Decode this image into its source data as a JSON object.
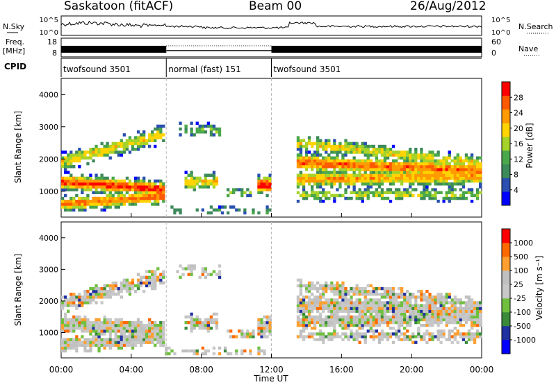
{
  "header": {
    "station": "Saskatoon (fitACF)",
    "beam": "Beam 00",
    "date": "26/Aug/2012"
  },
  "nsky_panel": {
    "left_label": "N.Sky",
    "right_label": "N.Search",
    "y_ticks": [
      "10^5",
      "10^0"
    ],
    "right_ticks": [
      "10^5",
      "10^0"
    ]
  },
  "freq_panel": {
    "left_label_1": "Freq.",
    "left_label_2": "[MHz]",
    "right_label": "Nave",
    "y_ticks": [
      "18",
      "8"
    ],
    "right_ticks": [
      "60",
      "0"
    ]
  },
  "cpid": {
    "label": "CPID",
    "segments": [
      {
        "name": "twofsound 3501",
        "start_h": 0,
        "end_h": 6
      },
      {
        "name": "normal (fast) 151",
        "start_h": 6,
        "end_h": 12
      },
      {
        "name": "twofsound 3501",
        "start_h": 12,
        "end_h": 24
      }
    ]
  },
  "chart_data": [
    {
      "type": "heatmap",
      "title": "Power",
      "ylabel": "Slant Range [km]",
      "y_ticks": [
        "4000",
        "3000",
        "2000",
        "1000"
      ],
      "ylim": [
        200,
        4500
      ],
      "colorbar": {
        "label": "Power [dB]",
        "ticks": [
          "28",
          "24",
          "20",
          "16",
          "12",
          "8",
          "4"
        ],
        "range": [
          0,
          32
        ]
      }
    },
    {
      "type": "heatmap",
      "title": "Velocity",
      "ylabel": "Slant Range [km]",
      "y_ticks": [
        "4000",
        "3000",
        "2000",
        "1000"
      ],
      "ylim": [
        200,
        4500
      ],
      "colorbar": {
        "label": "Velocity [m s⁻¹]",
        "ticks": [
          "1000",
          "500",
          "100",
          "25",
          "-25",
          "-100",
          "-500",
          "-1000"
        ]
      }
    }
  ],
  "x_axis": {
    "label": "Time UT",
    "ticks": [
      "00:00",
      "04:00",
      "08:00",
      "12:00",
      "16:00",
      "20:00",
      "00:00"
    ],
    "xlim_hours": [
      0,
      24
    ]
  },
  "colors": {
    "power_scale": [
      "#0000ff",
      "#2a4fb0",
      "#3d8a5a",
      "#4aa84a",
      "#a6d32a",
      "#ffd400",
      "#ff9a00",
      "#ff5a00",
      "#ff0000"
    ],
    "velocity_scale": [
      "#ff0000",
      "#ff6a00",
      "#ffa030",
      "#c0c0c0",
      "#c8c8c8",
      "#70c040",
      "#3a8a3a",
      "#2030a0",
      "#0000ff"
    ]
  }
}
